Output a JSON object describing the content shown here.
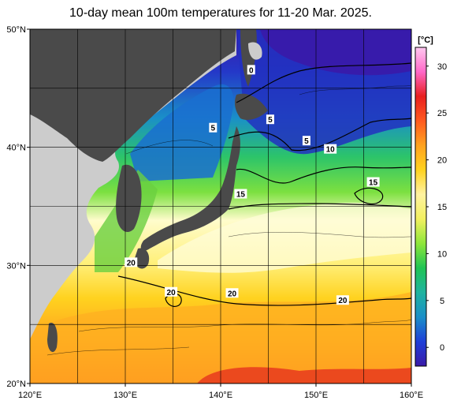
{
  "title": "10-day mean 100m temperatures for 11-20 Mar. 2025.",
  "map": {
    "lon_range": [
      120,
      160
    ],
    "lat_range": [
      20,
      50
    ],
    "x_ticks": [
      "120°E",
      "130°E",
      "140°E",
      "150°E",
      "160°E"
    ],
    "y_ticks": [
      "50°N",
      "40°N",
      "30°N",
      "20°N"
    ],
    "grid_lines": true,
    "contour_labels": [
      {
        "text": "0",
        "lon": 143.2,
        "lat": 46.5
      },
      {
        "text": "5",
        "lon": 145.2,
        "lat": 42.3
      },
      {
        "text": "5",
        "lon": 139.2,
        "lat": 41.6
      },
      {
        "text": "5",
        "lon": 149.0,
        "lat": 40.5
      },
      {
        "text": "10",
        "lon": 151.5,
        "lat": 39.8
      },
      {
        "text": "15",
        "lon": 142.1,
        "lat": 36.0
      },
      {
        "text": "15",
        "lon": 156.0,
        "lat": 37.0
      },
      {
        "text": "20",
        "lon": 130.6,
        "lat": 30.2
      },
      {
        "text": "20",
        "lon": 134.8,
        "lat": 27.7
      },
      {
        "text": "20",
        "lon": 141.2,
        "lat": 27.6
      },
      {
        "text": "20",
        "lon": 152.8,
        "lat": 27.0
      }
    ]
  },
  "colorbar": {
    "unit": "[°C]",
    "ticks": [
      "30",
      "25",
      "20",
      "15",
      "10",
      "5",
      "0"
    ],
    "tick_values": [
      30,
      25,
      20,
      15,
      10,
      5,
      0
    ],
    "range": [
      -2,
      32
    ],
    "colors": [
      "#3a1aa8",
      "#1f3fd8",
      "#1a8fc8",
      "#1fb3a0",
      "#1fc454",
      "#8ee63a",
      "#f2f060",
      "#fff2a0",
      "#ffd21f",
      "#ffa21f",
      "#ff5a1f",
      "#e81f1f",
      "#ff68c8",
      "#ffc8f0"
    ]
  },
  "colors": {
    "land_japan": "#4a4a4a",
    "land_mainland": "#cccccc",
    "grid": "#000000"
  }
}
